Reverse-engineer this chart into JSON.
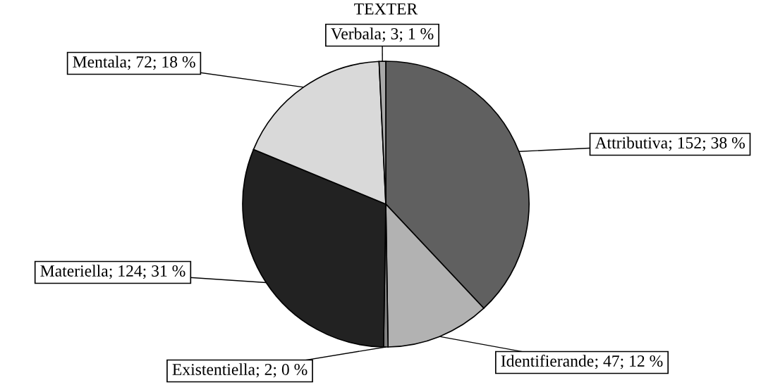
{
  "chart_data": {
    "type": "pie",
    "title": "TEXTER",
    "categories": [
      "Attributiva",
      "Identifierande",
      "Existentiella",
      "Materiella",
      "Mentala",
      "Verbala"
    ],
    "values": [
      152,
      47,
      2,
      124,
      72,
      3
    ],
    "colors": [
      "#606060",
      "#b2b2b2",
      "#808080",
      "#222222",
      "#d9d9d9",
      "#a9a9a9"
    ],
    "value_labels": [
      "; 152; 38 %",
      "; 47; 12 %",
      "; 2; 0 %",
      "; 124; 31 %",
      "; 72; 18 %",
      "; 3; 1 %"
    ],
    "legend": false
  }
}
